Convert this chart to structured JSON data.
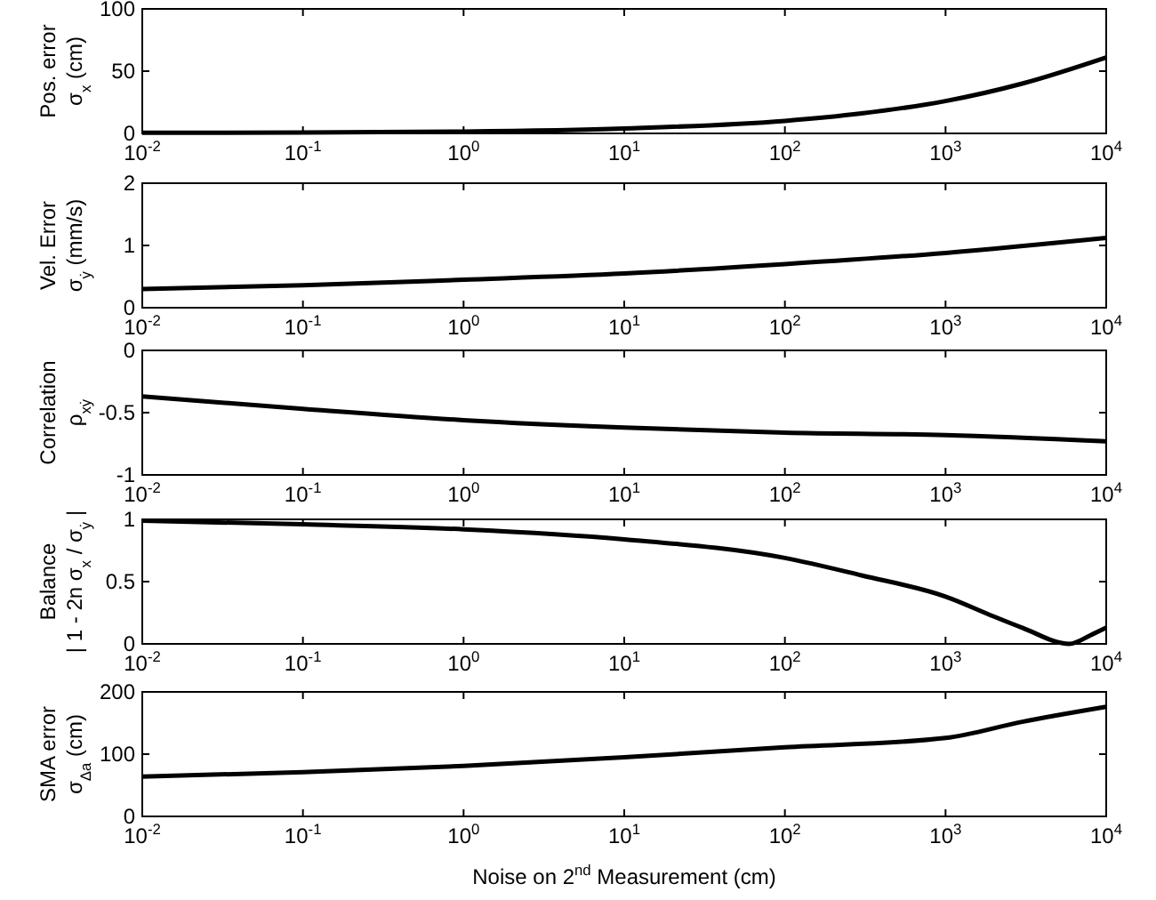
{
  "chart_data": [
    {
      "type": "line",
      "ylabel": "Pos. error\nσ$_{x}$ (cm)",
      "log": "x",
      "x": [
        0.01,
        0.1,
        1,
        10,
        100,
        300,
        1000,
        3000,
        10000
      ],
      "series": [
        {
          "color": "#000000",
          "values": [
            0.5,
            0.7,
            1.5,
            4,
            10,
            16,
            26,
            40,
            61
          ]
        }
      ],
      "xlim": [
        0.01,
        10000
      ],
      "xticks": [
        {
          "value": 0.01,
          "label": "10$^{-2}$"
        },
        {
          "value": 0.1,
          "label": "10$^{-1}$"
        },
        {
          "value": 1,
          "label": "10$^{0}$"
        },
        {
          "value": 10,
          "label": "10$^{1}$"
        },
        {
          "value": 100,
          "label": "10$^{2}$"
        },
        {
          "value": 1000,
          "label": "10$^{3}$"
        },
        {
          "value": 10000,
          "label": "10$^{4}$"
        }
      ],
      "ylim": [
        0,
        100
      ],
      "yticks": [
        0,
        50,
        100
      ]
    },
    {
      "type": "line",
      "ylabel": "Vel. Error\nσ$_{ẏ}$ (mm/s)",
      "log": "x",
      "x": [
        0.01,
        0.1,
        1,
        10,
        100,
        1000,
        10000
      ],
      "series": [
        {
          "color": "#000000",
          "values": [
            0.3,
            0.36,
            0.45,
            0.55,
            0.7,
            0.88,
            1.12
          ]
        }
      ],
      "xlim": [
        0.01,
        10000
      ],
      "xticks": [
        {
          "value": 0.01,
          "label": "10$^{-2}$"
        },
        {
          "value": 0.1,
          "label": "10$^{-1}$"
        },
        {
          "value": 1,
          "label": "10$^{0}$"
        },
        {
          "value": 10,
          "label": "10$^{1}$"
        },
        {
          "value": 100,
          "label": "10$^{2}$"
        },
        {
          "value": 1000,
          "label": "10$^{3}$"
        },
        {
          "value": 10000,
          "label": "10$^{4}$"
        }
      ],
      "ylim": [
        0,
        2
      ],
      "yticks": [
        0,
        1,
        2
      ]
    },
    {
      "type": "line",
      "ylabel": "Correlation\nρ$_{xẏ}$",
      "log": "x",
      "x": [
        0.01,
        0.1,
        1,
        10,
        100,
        1000,
        10000
      ],
      "series": [
        {
          "color": "#000000",
          "values": [
            -0.37,
            -0.47,
            -0.56,
            -0.62,
            -0.66,
            -0.68,
            -0.73
          ]
        }
      ],
      "xlim": [
        0.01,
        10000
      ],
      "xticks": [
        {
          "value": 0.01,
          "label": "10$^{-2}$"
        },
        {
          "value": 0.1,
          "label": "10$^{-1}$"
        },
        {
          "value": 1,
          "label": "10$^{0}$"
        },
        {
          "value": 10,
          "label": "10$^{1}$"
        },
        {
          "value": 100,
          "label": "10$^{2}$"
        },
        {
          "value": 1000,
          "label": "10$^{3}$"
        },
        {
          "value": 10000,
          "label": "10$^{4}$"
        }
      ],
      "ylim": [
        -1,
        0
      ],
      "yticks": [
        -1,
        -0.5,
        0
      ]
    },
    {
      "type": "line",
      "ylabel": "Balance\n| 1 - 2n σ$_{x}$ / σ$_{ẏ}$ |",
      "log": "x",
      "x": [
        0.01,
        0.1,
        1,
        10,
        100,
        300,
        1000,
        2000,
        3000,
        5900,
        8000,
        10000
      ],
      "series": [
        {
          "color": "#000000",
          "values": [
            0.99,
            0.96,
            0.92,
            0.84,
            0.69,
            0.55,
            0.38,
            0.22,
            0.13,
            0,
            0.07,
            0.13
          ]
        }
      ],
      "xlim": [
        0.01,
        10000
      ],
      "xticks": [
        {
          "value": 0.01,
          "label": "10$^{-2}$"
        },
        {
          "value": 0.1,
          "label": "10$^{-1}$"
        },
        {
          "value": 1,
          "label": "10$^{0}$"
        },
        {
          "value": 10,
          "label": "10$^{1}$"
        },
        {
          "value": 100,
          "label": "10$^{2}$"
        },
        {
          "value": 1000,
          "label": "10$^{3}$"
        },
        {
          "value": 10000,
          "label": "10$^{4}$"
        }
      ],
      "ylim": [
        0,
        1
      ],
      "yticks": [
        0,
        0.5,
        1
      ]
    },
    {
      "type": "line",
      "ylabel": "SMA error\nσ$_{Δa}$ (cm)",
      "xlabel": "Noise on 2$^{nd}$ Measurement (cm)",
      "log": "x",
      "x": [
        0.01,
        0.1,
        1,
        10,
        100,
        1000,
        3000,
        10000
      ],
      "series": [
        {
          "color": "#000000",
          "values": [
            64,
            71,
            81,
            95,
            111,
            126,
            152,
            176
          ]
        }
      ],
      "xlim": [
        0.01,
        10000
      ],
      "xticks": [
        {
          "value": 0.01,
          "label": "10$^{-2}$"
        },
        {
          "value": 0.1,
          "label": "10$^{-1}$"
        },
        {
          "value": 1,
          "label": "10$^{0}$"
        },
        {
          "value": 10,
          "label": "10$^{1}$"
        },
        {
          "value": 100,
          "label": "10$^{2}$"
        },
        {
          "value": 1000,
          "label": "10$^{3}$"
        },
        {
          "value": 10000,
          "label": "10$^{4}$"
        }
      ],
      "ylim": [
        0,
        200
      ],
      "yticks": [
        0,
        100,
        200
      ]
    }
  ]
}
